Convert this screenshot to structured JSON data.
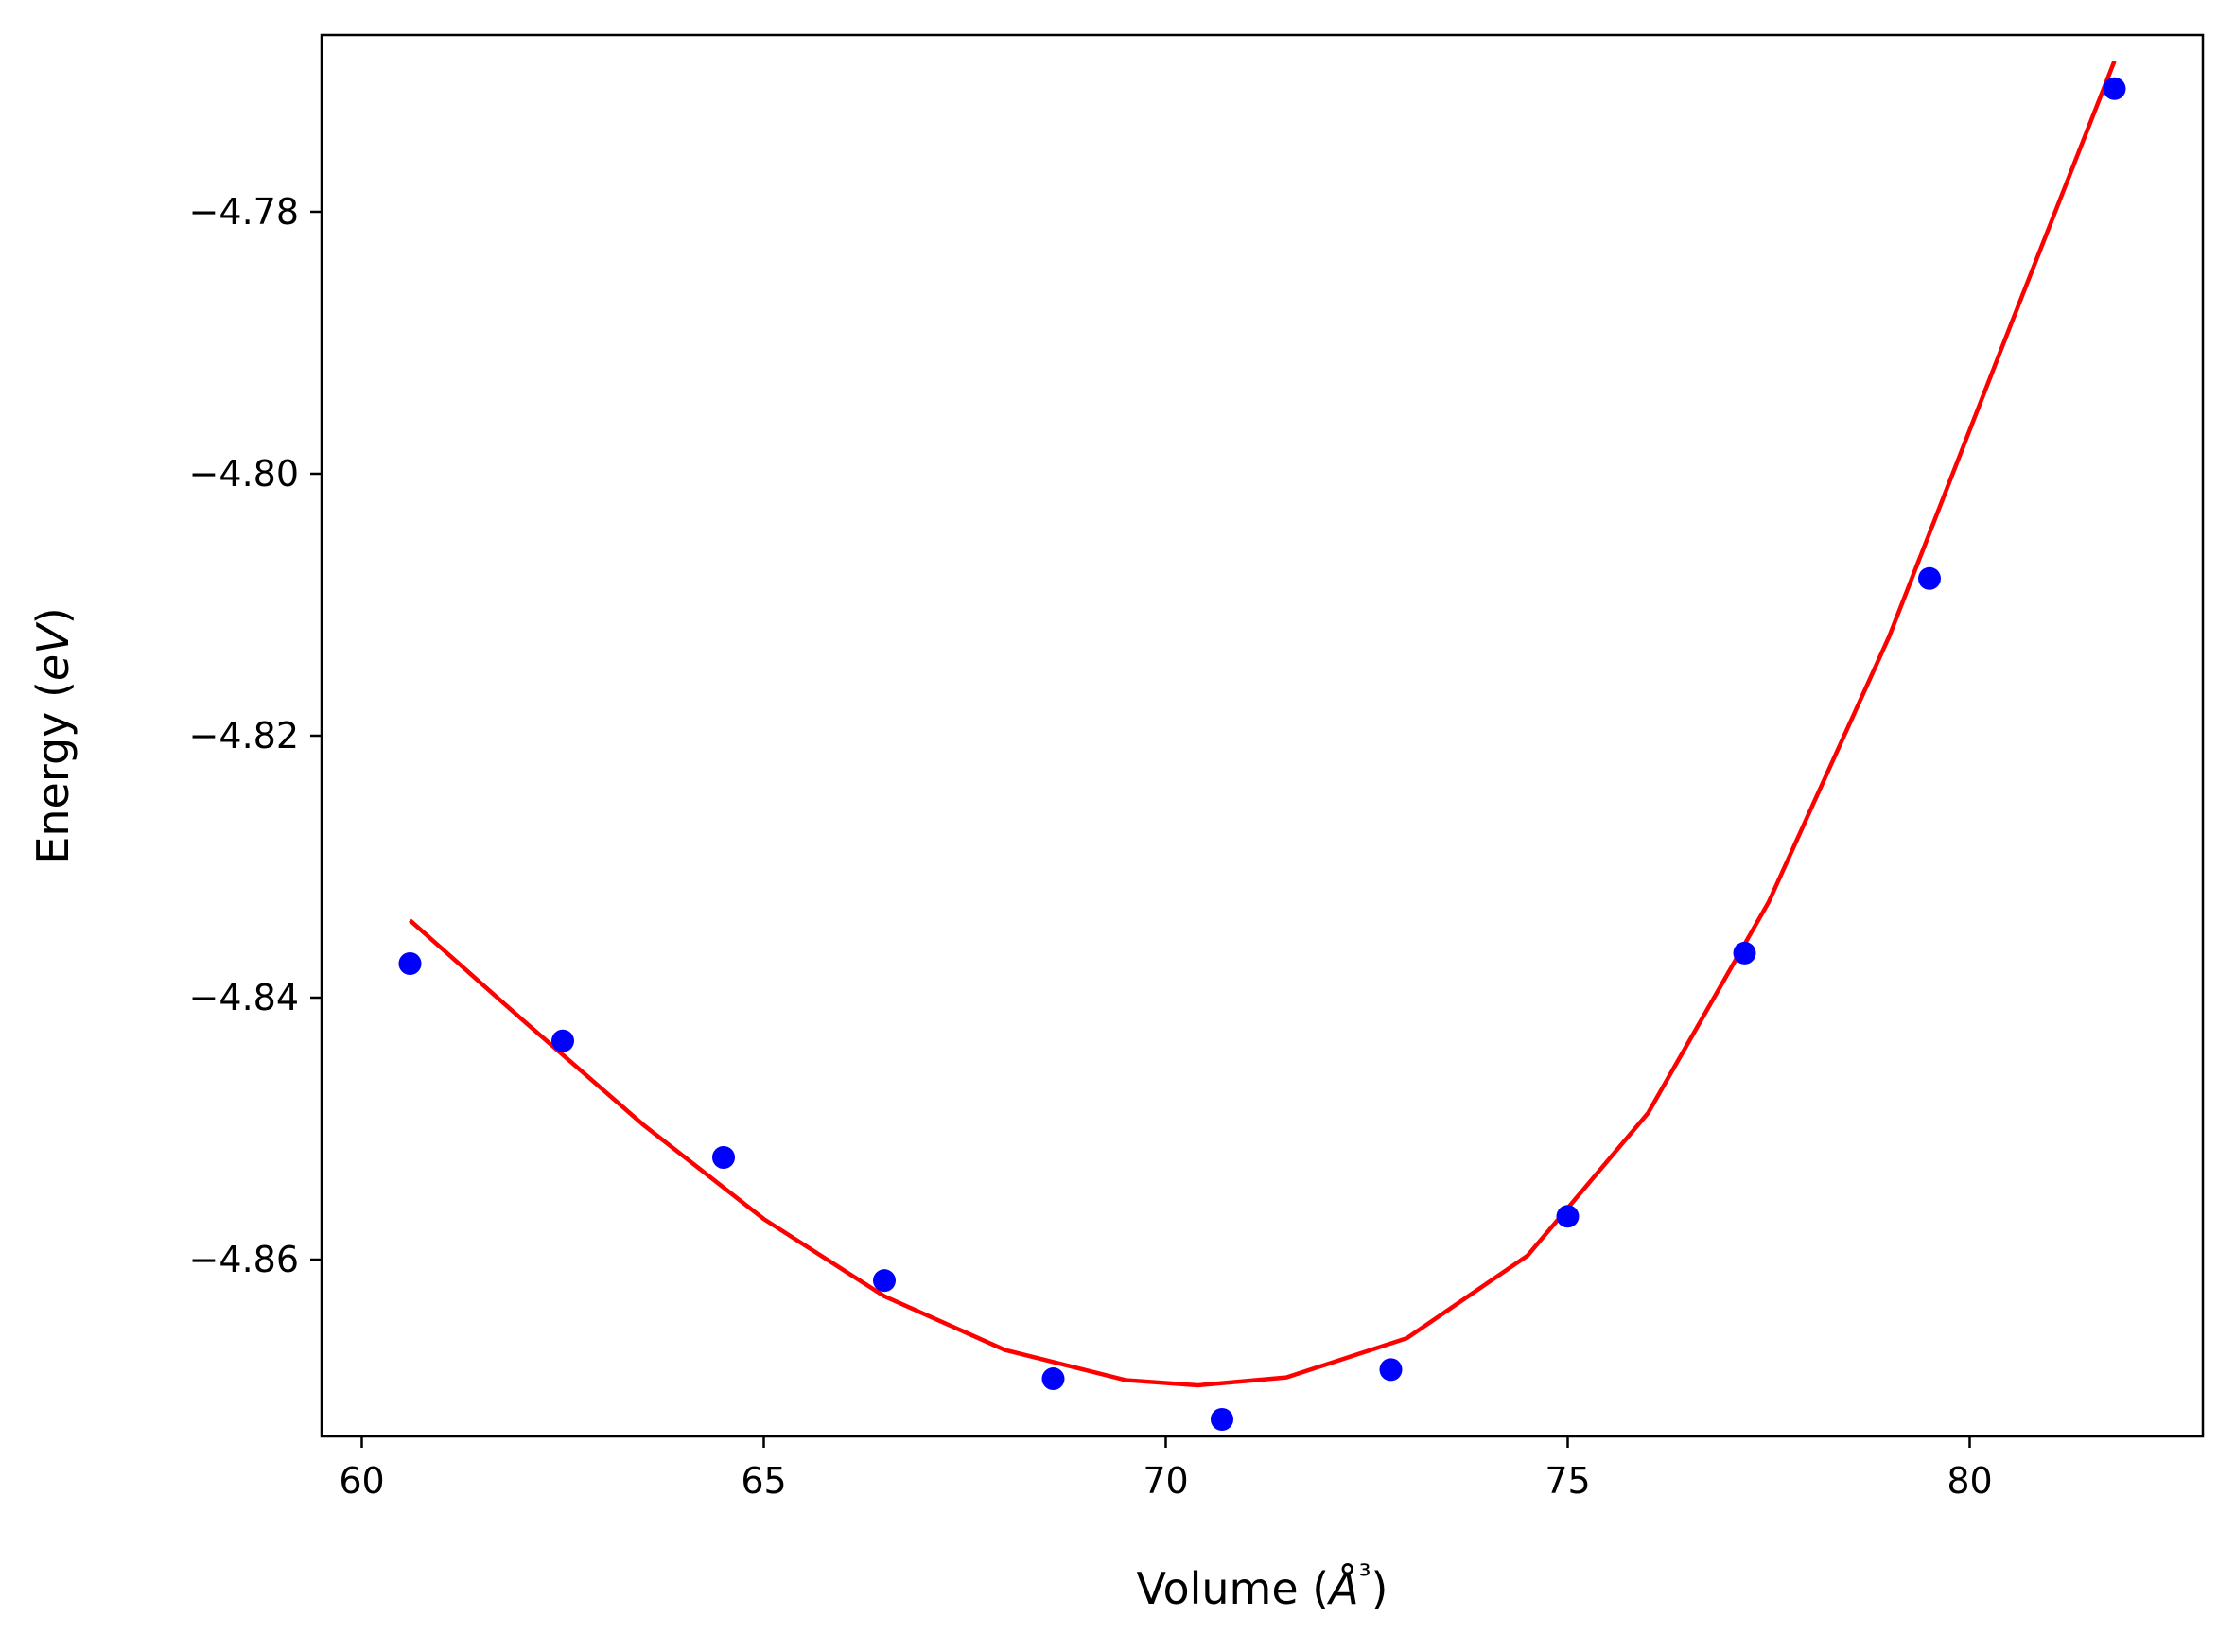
{
  "chart_data": {
    "type": "scatter",
    "xlabel": "Volume (Å³)",
    "ylabel": "Energy (eV)",
    "xlim": [
      59.5,
      82.9
    ],
    "ylim": [
      -4.8735,
      -4.7665
    ],
    "x_ticks": [
      60,
      65,
      70,
      75,
      80
    ],
    "y_ticks": [
      -4.86,
      -4.84,
      -4.82,
      -4.8,
      -4.78
    ],
    "x_tick_labels": [
      "60",
      "65",
      "70",
      "75",
      "80"
    ],
    "y_tick_labels": [
      "−4.86",
      "−4.84",
      "−4.82",
      "−4.80",
      "−4.78"
    ],
    "grid": false,
    "series": [
      {
        "type": "scatter",
        "color": "#0000ff",
        "points": [
          {
            "x": 60.6,
            "y": -4.8374
          },
          {
            "x": 62.5,
            "y": -4.8433
          },
          {
            "x": 64.5,
            "y": -4.8522
          },
          {
            "x": 66.5,
            "y": -4.8616
          },
          {
            "x": 68.6,
            "y": -4.8691
          },
          {
            "x": 70.7,
            "y": -4.8722
          },
          {
            "x": 72.8,
            "y": -4.8684
          },
          {
            "x": 75.0,
            "y": -4.8567
          },
          {
            "x": 77.2,
            "y": -4.8366
          },
          {
            "x": 79.5,
            "y": -4.808
          },
          {
            "x": 81.8,
            "y": -4.7706
          }
        ]
      },
      {
        "type": "line",
        "color": "#ff0000",
        "points": [
          {
            "x": 60.6,
            "y": -4.8341
          },
          {
            "x": 62.0,
            "y": -4.8417
          },
          {
            "x": 63.5,
            "y": -4.8497
          },
          {
            "x": 65.0,
            "y": -4.8569
          },
          {
            "x": 66.5,
            "y": -4.8628
          },
          {
            "x": 68.0,
            "y": -4.8669
          },
          {
            "x": 69.5,
            "y": -4.8692
          },
          {
            "x": 70.4,
            "y": -4.8696
          },
          {
            "x": 71.5,
            "y": -4.869
          },
          {
            "x": 73.0,
            "y": -4.866
          },
          {
            "x": 74.5,
            "y": -4.8597
          },
          {
            "x": 76.0,
            "y": -4.8488
          },
          {
            "x": 77.5,
            "y": -4.8327
          },
          {
            "x": 79.0,
            "y": -4.8124
          },
          {
            "x": 80.5,
            "y": -4.7888
          },
          {
            "x": 81.8,
            "y": -4.7685
          }
        ]
      }
    ]
  }
}
